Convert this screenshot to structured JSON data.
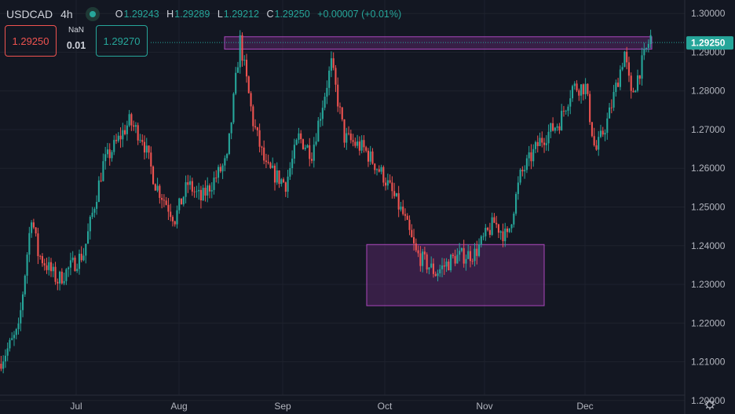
{
  "header": {
    "symbol": "USDCAD",
    "timeframe": "4h",
    "ohlc": {
      "o_label": "O",
      "o": "1.29243",
      "h_label": "H",
      "h": "1.29289",
      "l_label": "L",
      "l": "1.29212",
      "c_label": "C",
      "c": "1.29250",
      "change": "+0.00007 (+0.01%)"
    }
  },
  "quote": {
    "bid": "1.29250",
    "spread_top": "NaN",
    "spread_bottom": "0.01",
    "ask": "1.29270"
  },
  "colors": {
    "background": "#131722",
    "up": "#26a69a",
    "down": "#ef5350",
    "zone_fill": "#7b2f8a",
    "zone_border": "#ab47bc",
    "grid": "#1e222d",
    "text": "#b2b5be"
  },
  "chart_data": {
    "type": "candlestick",
    "symbol": "USDCAD",
    "timeframe": "4h",
    "x_ticks": [
      "Jul",
      "Aug",
      "Sep",
      "Oct",
      "Nov",
      "Dec"
    ],
    "y_ticks": [
      "1.30000",
      "1.29000",
      "1.28000",
      "1.27000",
      "1.26000",
      "1.25000",
      "1.24000",
      "1.23000",
      "1.22000",
      "1.21000",
      "1.20000"
    ],
    "ylim": [
      1.1965,
      1.3035
    ],
    "last_price": "1.29250",
    "price_path": [
      [
        0.0,
        1.2095
      ],
      [
        0.03,
        1.218
      ],
      [
        0.05,
        1.248
      ],
      [
        0.06,
        1.238
      ],
      [
        0.09,
        1.231
      ],
      [
        0.13,
        1.238
      ],
      [
        0.16,
        1.261
      ],
      [
        0.2,
        1.272
      ],
      [
        0.22,
        1.268
      ],
      [
        0.24,
        1.256
      ],
      [
        0.27,
        1.247
      ],
      [
        0.29,
        1.256
      ],
      [
        0.31,
        1.252
      ],
      [
        0.35,
        1.262
      ],
      [
        0.37,
        1.293
      ],
      [
        0.39,
        1.272
      ],
      [
        0.41,
        1.26
      ],
      [
        0.44,
        1.256
      ],
      [
        0.46,
        1.268
      ],
      [
        0.48,
        1.264
      ],
      [
        0.51,
        1.287
      ],
      [
        0.53,
        1.268
      ],
      [
        0.56,
        1.265
      ],
      [
        0.59,
        1.258
      ],
      [
        0.62,
        1.248
      ],
      [
        0.64,
        1.238
      ],
      [
        0.67,
        1.233
      ],
      [
        0.7,
        1.237
      ],
      [
        0.73,
        1.238
      ],
      [
        0.76,
        1.246
      ],
      [
        0.78,
        1.242
      ],
      [
        0.8,
        1.258
      ],
      [
        0.83,
        1.267
      ],
      [
        0.86,
        1.272
      ],
      [
        0.88,
        1.281
      ],
      [
        0.9,
        1.281
      ],
      [
        0.915,
        1.264
      ],
      [
        0.935,
        1.273
      ],
      [
        0.96,
        1.29
      ],
      [
        0.97,
        1.2785
      ],
      [
        1.0,
        1.294
      ]
    ],
    "zones": [
      {
        "kind": "resistance",
        "x_start": "Aug (late)",
        "x_end": "Dec (late)",
        "y_top": 1.294,
        "y_bottom": 1.2908
      },
      {
        "kind": "support",
        "x_start": "Sep (late)",
        "x_end": "Nov (mid)",
        "y_top": 1.2403,
        "y_bottom": 1.2245
      }
    ],
    "grid": true
  }
}
